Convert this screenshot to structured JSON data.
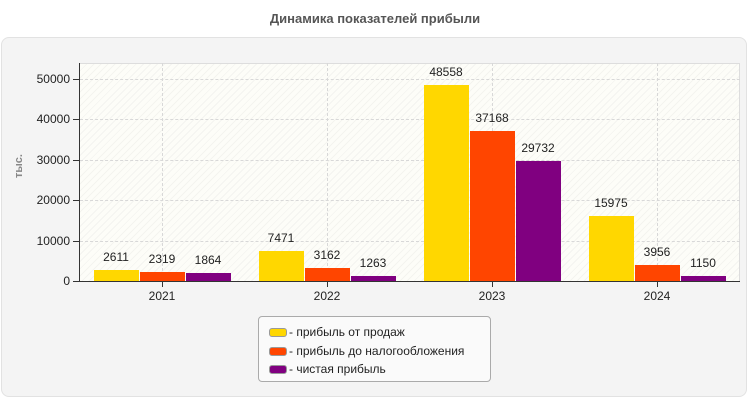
{
  "title": "Динамика показателей прибыли",
  "chart_data": {
    "type": "bar",
    "title": "Динамика показателей прибыли",
    "xlabel": "",
    "ylabel": "тыс.",
    "ylim": [
      0,
      54500
    ],
    "yticks": [
      0,
      10000,
      20000,
      30000,
      40000,
      50000
    ],
    "categories": [
      "2021",
      "2022",
      "2023",
      "2024"
    ],
    "series": [
      {
        "name": "прибыль от продаж",
        "color": "#ffd700",
        "values": [
          2611,
          7471,
          48558,
          15975
        ]
      },
      {
        "name": "прибыль до налогообложения",
        "color": "#ff4500",
        "values": [
          2319,
          3162,
          37168,
          3956
        ]
      },
      {
        "name": "чистая прибыль",
        "color": "#800080",
        "values": [
          1864,
          1263,
          29732,
          1150
        ]
      }
    ],
    "grid": true,
    "legend_position": "bottom"
  },
  "legend": {
    "items": [
      {
        "label": "- прибыль от продаж",
        "color": "#ffd700"
      },
      {
        "label": "- прибыль до налогообложения",
        "color": "#ff4500"
      },
      {
        "label": "- чистая прибыль",
        "color": "#800080"
      }
    ]
  }
}
